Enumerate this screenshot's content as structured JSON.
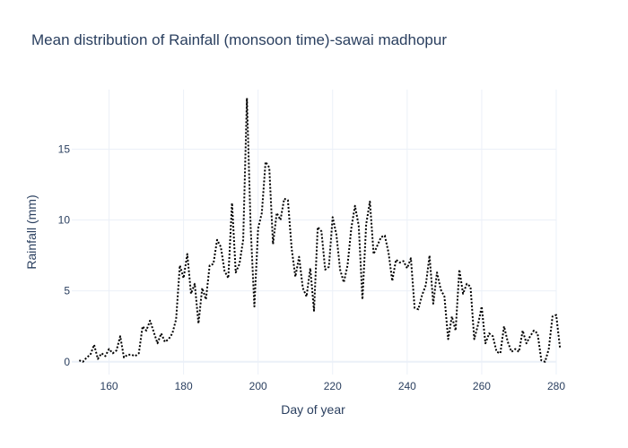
{
  "chart_data": {
    "type": "line",
    "title": "Mean distribution of Rainfall (monsoon time)-sawai madhopur",
    "xlabel": "Day of year",
    "ylabel": "Rainfall (mm)",
    "xlim": [
      150,
      280
    ],
    "ylim": [
      -0.9,
      19.2
    ],
    "x_ticks": [
      160,
      180,
      200,
      220,
      240,
      260,
      280
    ],
    "y_ticks": [
      0,
      5,
      10,
      15
    ],
    "grid": true,
    "series": [
      {
        "name": "Rainfall",
        "color": "#000000",
        "line_style": "dotted",
        "x_start": 152,
        "x_step": 1,
        "values": [
          0.1,
          0.0,
          0.3,
          0.5,
          1.2,
          0.2,
          0.6,
          0.4,
          0.9,
          0.6,
          0.8,
          1.8,
          0.3,
          0.5,
          0.5,
          0.4,
          0.6,
          2.5,
          2.2,
          2.9,
          2.1,
          1.3,
          2.0,
          1.4,
          1.6,
          2.0,
          3.0,
          6.8,
          5.9,
          7.6,
          4.8,
          5.5,
          2.7,
          5.2,
          4.4,
          6.8,
          6.9,
          8.6,
          8.1,
          6.4,
          5.9,
          11.2,
          6.3,
          6.9,
          8.6,
          18.6,
          9.5,
          3.9,
          9.4,
          10.5,
          14.1,
          13.7,
          8.3,
          10.5,
          10.0,
          11.5,
          11.4,
          8.0,
          6.0,
          7.4,
          5.2,
          4.6,
          6.6,
          3.6,
          9.5,
          9.2,
          6.5,
          6.7,
          10.2,
          9.0,
          6.5,
          5.6,
          6.8,
          9.4,
          11.0,
          9.6,
          4.4,
          9.7,
          11.3,
          7.6,
          8.2,
          8.8,
          8.9,
          7.7,
          5.7,
          7.2,
          7.0,
          7.1,
          6.6,
          7.3,
          3.8,
          3.7,
          4.7,
          5.4,
          7.5,
          4.1,
          6.3,
          5.1,
          4.6,
          1.6,
          3.2,
          2.2,
          6.5,
          4.8,
          5.5,
          5.3,
          1.6,
          2.6,
          3.9,
          1.3,
          2.0,
          1.8,
          0.7,
          0.6,
          2.5,
          1.4,
          0.7,
          0.9,
          0.7,
          2.2,
          1.3,
          1.8,
          2.2,
          2.0,
          0.1,
          0.0,
          0.9,
          3.2,
          3.3,
          1.0
        ]
      }
    ]
  }
}
